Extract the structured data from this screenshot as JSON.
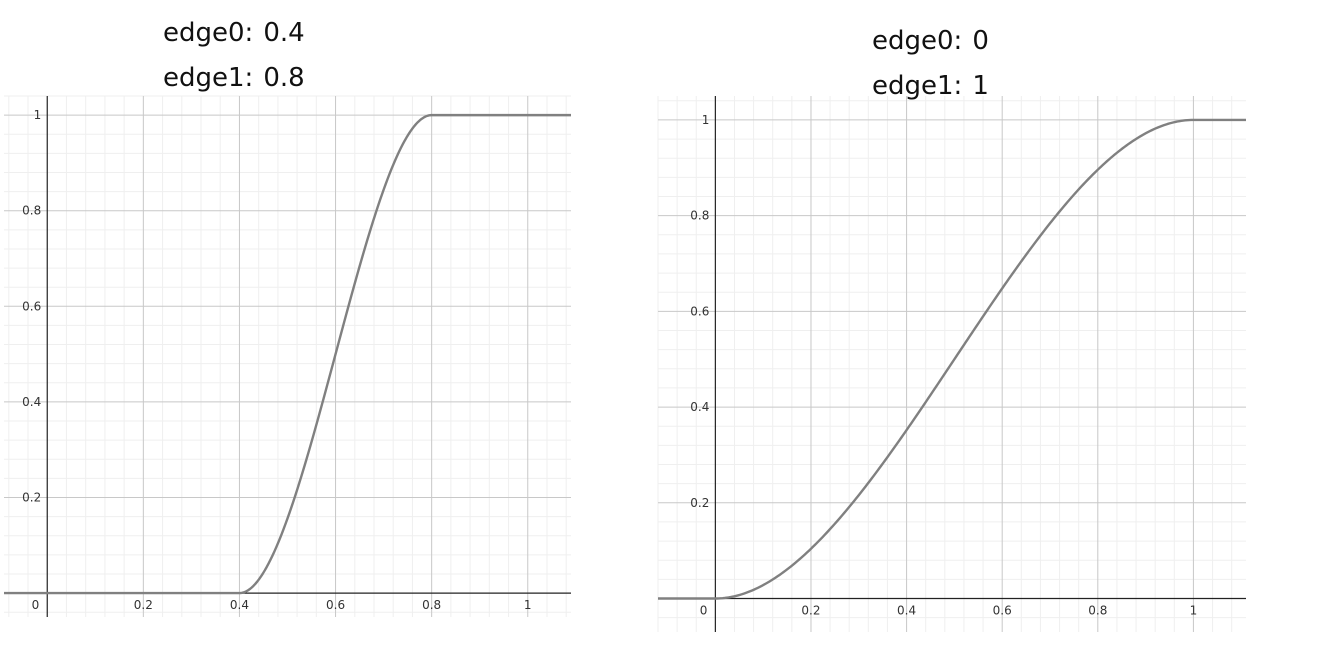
{
  "chart_data": [
    {
      "type": "line",
      "title": "",
      "xlabel": "",
      "ylabel": "",
      "params": [
        {
          "label": "edge0:",
          "value": "0.4"
        },
        {
          "label": "edge1:",
          "value": "0.8"
        }
      ],
      "edge0": 0.4,
      "edge1": 0.8,
      "function": "smoothstep",
      "xlim": [
        -0.09,
        1.09
      ],
      "ylim": [
        -0.05,
        1.04
      ],
      "xticks": [
        0.2,
        0.4,
        0.6,
        0.8,
        1
      ],
      "xtick_labels": [
        "0.2",
        "0.4",
        "0.6",
        "0.8",
        "1"
      ],
      "yticks": [
        0.2,
        0.4,
        0.6,
        0.8,
        1
      ],
      "ytick_labels": [
        "0.2",
        "0.4",
        "0.6",
        "0.8",
        "1"
      ],
      "origin_label": "0",
      "x": [
        -0.09,
        0.4,
        0.45,
        0.5,
        0.55,
        0.6,
        0.65,
        0.7,
        0.75,
        0.8,
        1.09
      ],
      "y": [
        0,
        0,
        0.043,
        0.156,
        0.316,
        0.5,
        0.684,
        0.844,
        0.957,
        1,
        1
      ],
      "grid": true,
      "line_color": "#808080"
    },
    {
      "type": "line",
      "title": "",
      "xlabel": "",
      "ylabel": "",
      "params": [
        {
          "label": "edge0:",
          "value": "0"
        },
        {
          "label": "edge1:",
          "value": "1"
        }
      ],
      "edge0": 0,
      "edge1": 1,
      "function": "smoothstep",
      "xlim": [
        -0.12,
        1.11
      ],
      "ylim": [
        -0.07,
        1.05
      ],
      "xticks": [
        0.2,
        0.4,
        0.6,
        0.8,
        1
      ],
      "xtick_labels": [
        "0.2",
        "0.4",
        "0.6",
        "0.8",
        "1"
      ],
      "yticks": [
        0.2,
        0.4,
        0.6,
        0.8,
        1
      ],
      "ytick_labels": [
        "0.2",
        "0.4",
        "0.6",
        "0.8",
        "1"
      ],
      "origin_label": "0",
      "x": [
        -0.12,
        0,
        0.1,
        0.2,
        0.3,
        0.4,
        0.5,
        0.6,
        0.7,
        0.8,
        0.9,
        1,
        1.11
      ],
      "y": [
        0,
        0,
        0.028,
        0.104,
        0.216,
        0.352,
        0.5,
        0.648,
        0.784,
        0.896,
        0.972,
        1,
        1
      ],
      "grid": true,
      "line_color": "#808080"
    }
  ]
}
